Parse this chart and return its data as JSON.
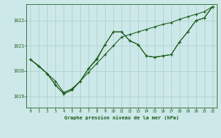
{
  "title": "Graphe pression niveau de la mer (hPa)",
  "bg_color": "#cce8e8",
  "line_color": "#1a5c1a",
  "grid_color": "#aacccc",
  "xlim": [
    -0.5,
    22.5
  ],
  "ylim": [
    1018.55,
    1022.65
  ],
  "yticks": [
    1019,
    1020,
    1021,
    1022
  ],
  "xticks": [
    0,
    1,
    2,
    3,
    4,
    5,
    6,
    7,
    8,
    9,
    10,
    11,
    12,
    13,
    14,
    15,
    16,
    17,
    18,
    19,
    20,
    21,
    22
  ],
  "series1_x": [
    0,
    1,
    2,
    3,
    4,
    5,
    6,
    7,
    8,
    9,
    10,
    11,
    12,
    13,
    14,
    15,
    16,
    17,
    18,
    19,
    20,
    21,
    22
  ],
  "series1_y": [
    1020.45,
    1020.2,
    1019.9,
    1019.6,
    1019.15,
    1019.3,
    1019.6,
    1019.95,
    1020.3,
    1020.65,
    1021.0,
    1021.35,
    1021.45,
    1021.55,
    1021.65,
    1021.75,
    1021.85,
    1021.92,
    1022.05,
    1022.15,
    1022.25,
    1022.35,
    1022.55
  ],
  "series2_x": [
    0,
    1,
    2,
    3,
    4,
    5,
    6,
    7,
    8,
    9,
    10,
    11,
    12,
    13,
    14,
    15,
    16,
    17,
    18,
    19,
    20,
    21,
    22
  ],
  "series2_y": [
    1020.45,
    1020.2,
    1019.9,
    1019.45,
    1019.1,
    1019.25,
    1019.6,
    1020.1,
    1020.5,
    1021.05,
    1021.55,
    1021.55,
    1021.2,
    1021.05,
    1020.6,
    1020.55,
    1020.6,
    1020.65,
    1021.15,
    1021.55,
    1022.0,
    1022.1,
    1022.55
  ],
  "series3_x": [
    0,
    2,
    3,
    4,
    5,
    6,
    7,
    8,
    9,
    10,
    11,
    12,
    13,
    14,
    15,
    16,
    17,
    18,
    19,
    20,
    21,
    22
  ],
  "series3_y": [
    1020.45,
    1019.9,
    1019.45,
    1019.1,
    1019.25,
    1019.6,
    1020.1,
    1020.45,
    1021.05,
    1021.55,
    1021.55,
    1021.2,
    1021.05,
    1020.6,
    1020.55,
    1020.6,
    1020.65,
    1021.15,
    1021.55,
    1022.0,
    1022.1,
    1022.55
  ]
}
